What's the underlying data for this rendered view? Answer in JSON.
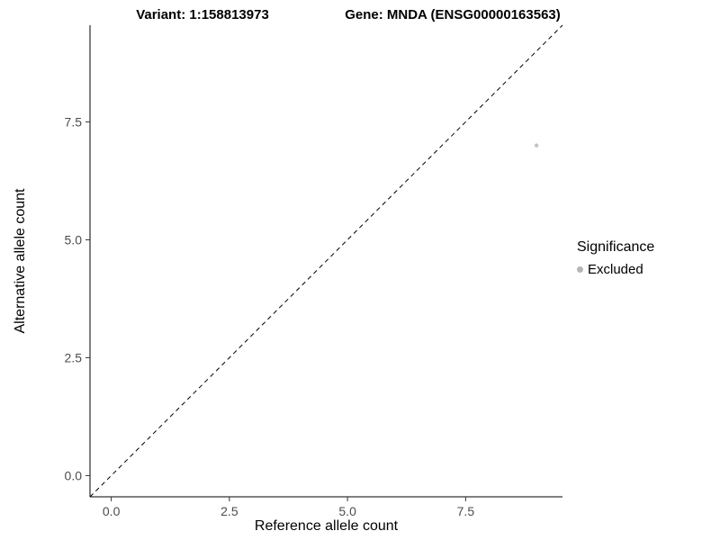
{
  "chart_data": {
    "type": "scatter",
    "title_left": "Variant: 1:158813973",
    "title_right": "Gene: MNDA (ENSG00000163563)",
    "xlabel": "Reference allele count",
    "ylabel": "Alternative allele count",
    "xlim": [
      -0.45,
      9.55
    ],
    "ylim": [
      -0.45,
      9.55
    ],
    "xticks": [
      0.0,
      2.5,
      5.0,
      7.5
    ],
    "xtick_labels": [
      "0.0",
      "2.5",
      "5.0",
      "7.5"
    ],
    "yticks": [
      0.0,
      2.5,
      5.0,
      7.5
    ],
    "ytick_labels": [
      "0.0",
      "2.5",
      "5.0",
      "7.5"
    ],
    "grid": false,
    "points": [
      {
        "x": 9,
        "y": 7,
        "series": "Excluded",
        "color": "#c3c3c3"
      }
    ],
    "reference_line": {
      "kind": "identity",
      "slope": 1,
      "intercept": 0,
      "style": "dashed",
      "color": "#000000"
    },
    "legend": {
      "position": "right",
      "title": "Significance",
      "entries": [
        {
          "label": "Excluded",
          "color": "#b5b5b5"
        }
      ]
    },
    "colors": {
      "axis_line": "#000000",
      "tick_mark": "#333333",
      "tick_label": "#4d4d4d",
      "background": "#ffffff"
    }
  }
}
